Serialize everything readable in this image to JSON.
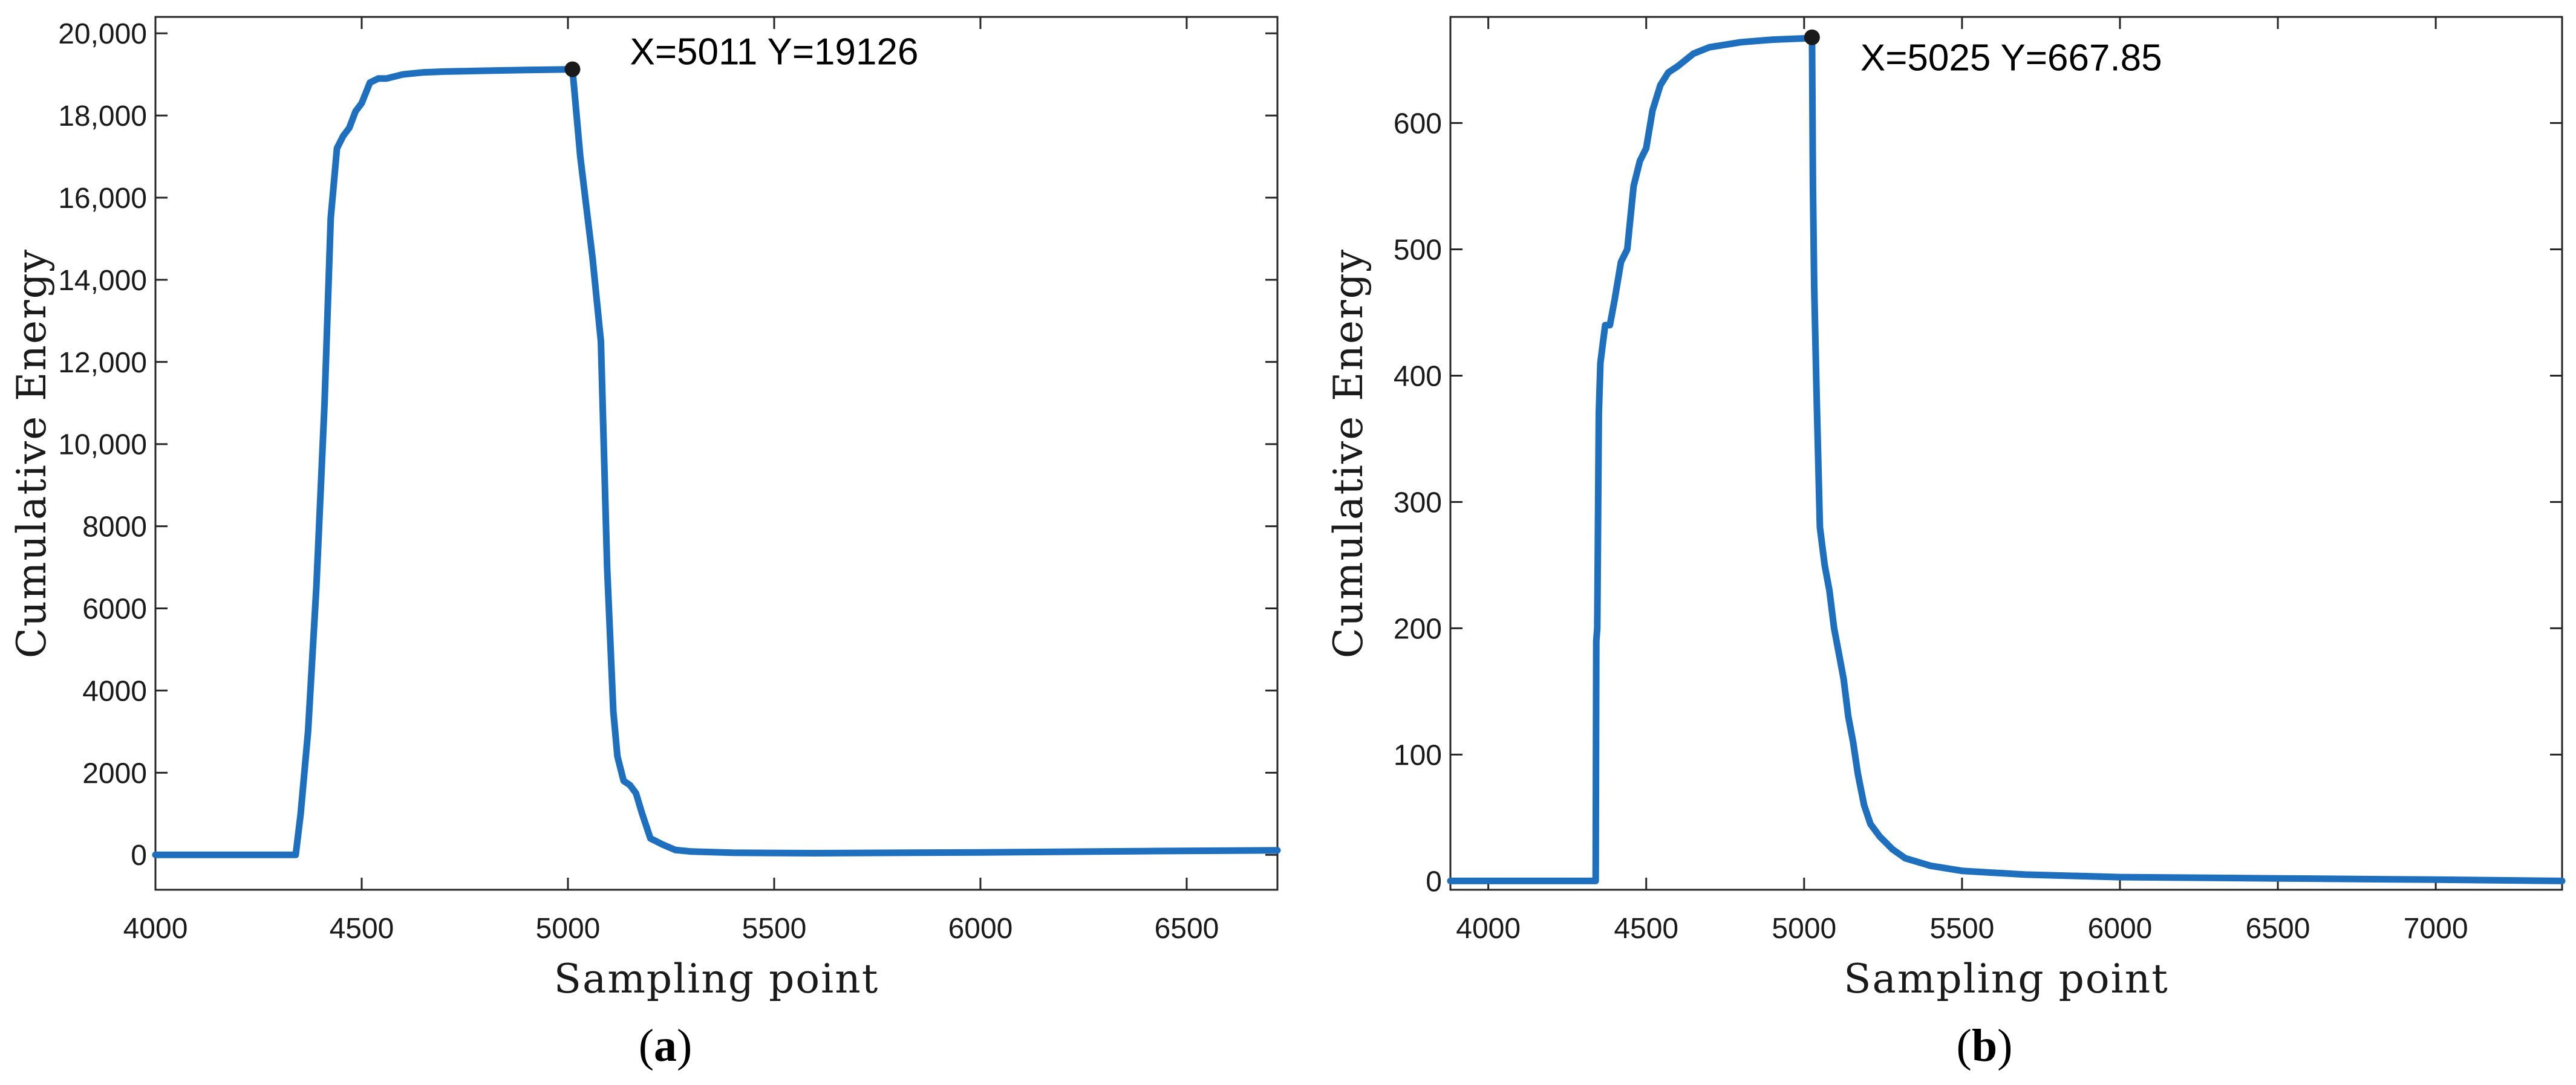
{
  "chart_data": [
    {
      "type": "line",
      "panel_label_open": "(",
      "panel_label_letter": "a",
      "panel_label_close": ")",
      "xlabel": "Sampling point",
      "ylabel": "Cumulative Energy",
      "xlim": [
        4000,
        6720
      ],
      "ylim": [
        -850,
        20400
      ],
      "xticks": [
        4000,
        4500,
        5000,
        5500,
        6000,
        6500
      ],
      "xtick_labels": [
        "4000",
        "4500",
        "5000",
        "5500",
        "6000",
        "6500"
      ],
      "yticks": [
        0,
        2000,
        4000,
        6000,
        8000,
        10000,
        12000,
        14000,
        16000,
        18000,
        20000
      ],
      "ytick_labels": [
        "0",
        "2000",
        "4000",
        "6000",
        "8000",
        "10,000",
        "12,000",
        "14,000",
        "16,000",
        "18,000",
        "20,000"
      ],
      "grid": false,
      "annotation": {
        "text": "X=5011  Y=19126",
        "x": 5011,
        "y": 19126
      },
      "series": [
        {
          "color": "#1f6fbf",
          "x": [
            4000,
            4340,
            4352,
            4370,
            4390,
            4410,
            4425,
            4440,
            4455,
            4470,
            4485,
            4500,
            4520,
            4540,
            4560,
            4600,
            4650,
            4700,
            4800,
            4900,
            4980,
            5011,
            5030,
            5060,
            5080,
            5095,
            5110,
            5120,
            5135,
            5150,
            5165,
            5180,
            5200,
            5230,
            5260,
            5300,
            5400,
            5600,
            6000,
            6400,
            6720
          ],
          "y": [
            0,
            0,
            1000,
            3000,
            6500,
            11000,
            15500,
            17200,
            17500,
            17700,
            18100,
            18300,
            18800,
            18900,
            18900,
            19000,
            19050,
            19070,
            19090,
            19110,
            19120,
            19126,
            17000,
            14500,
            12500,
            7000,
            3500,
            2400,
            1800,
            1700,
            1500,
            1000,
            400,
            250,
            120,
            80,
            50,
            40,
            60,
            90,
            110
          ]
        }
      ]
    },
    {
      "type": "line",
      "panel_label_open": "(",
      "panel_label_letter": "b",
      "panel_label_close": ")",
      "xlabel": "Sampling point",
      "ylabel": "Cumulative Energy",
      "xlim": [
        3880,
        7400
      ],
      "ylim": [
        -7,
        684
      ],
      "xticks": [
        4000,
        4500,
        5000,
        5500,
        6000,
        6500,
        7000
      ],
      "xtick_labels": [
        "4000",
        "4500",
        "5000",
        "5500",
        "6000",
        "6500",
        "7000"
      ],
      "yticks": [
        0,
        100,
        200,
        300,
        400,
        500,
        600
      ],
      "ytick_labels": [
        "0",
        "100",
        "200",
        "300",
        "400",
        "500",
        "600"
      ],
      "grid": false,
      "annotation": {
        "text": "X=5025 Y=667.85",
        "x": 5025,
        "y": 667.85
      },
      "series": [
        {
          "color": "#1f6fbf",
          "x": [
            3880,
            4340,
            4342,
            4345,
            4350,
            4355,
            4360,
            4370,
            4385,
            4400,
            4420,
            4440,
            4460,
            4480,
            4500,
            4520,
            4545,
            4570,
            4600,
            4650,
            4700,
            4800,
            4900,
            5000,
            5025,
            5028,
            5032,
            5040,
            5050,
            5065,
            5080,
            5095,
            5110,
            5125,
            5140,
            5155,
            5170,
            5190,
            5210,
            5240,
            5280,
            5320,
            5400,
            5500,
            5700,
            6000,
            6500,
            7000,
            7400
          ],
          "y": [
            0,
            0,
            190,
            200,
            370,
            410,
            420,
            440,
            440,
            460,
            490,
            500,
            550,
            570,
            580,
            610,
            630,
            640,
            645,
            655,
            660,
            664,
            666,
            667,
            667.85,
            550,
            470,
            380,
            280,
            250,
            230,
            200,
            180,
            160,
            130,
            110,
            85,
            60,
            45,
            35,
            25,
            18,
            12,
            8,
            5,
            3,
            2,
            1,
            0
          ]
        }
      ]
    }
  ]
}
